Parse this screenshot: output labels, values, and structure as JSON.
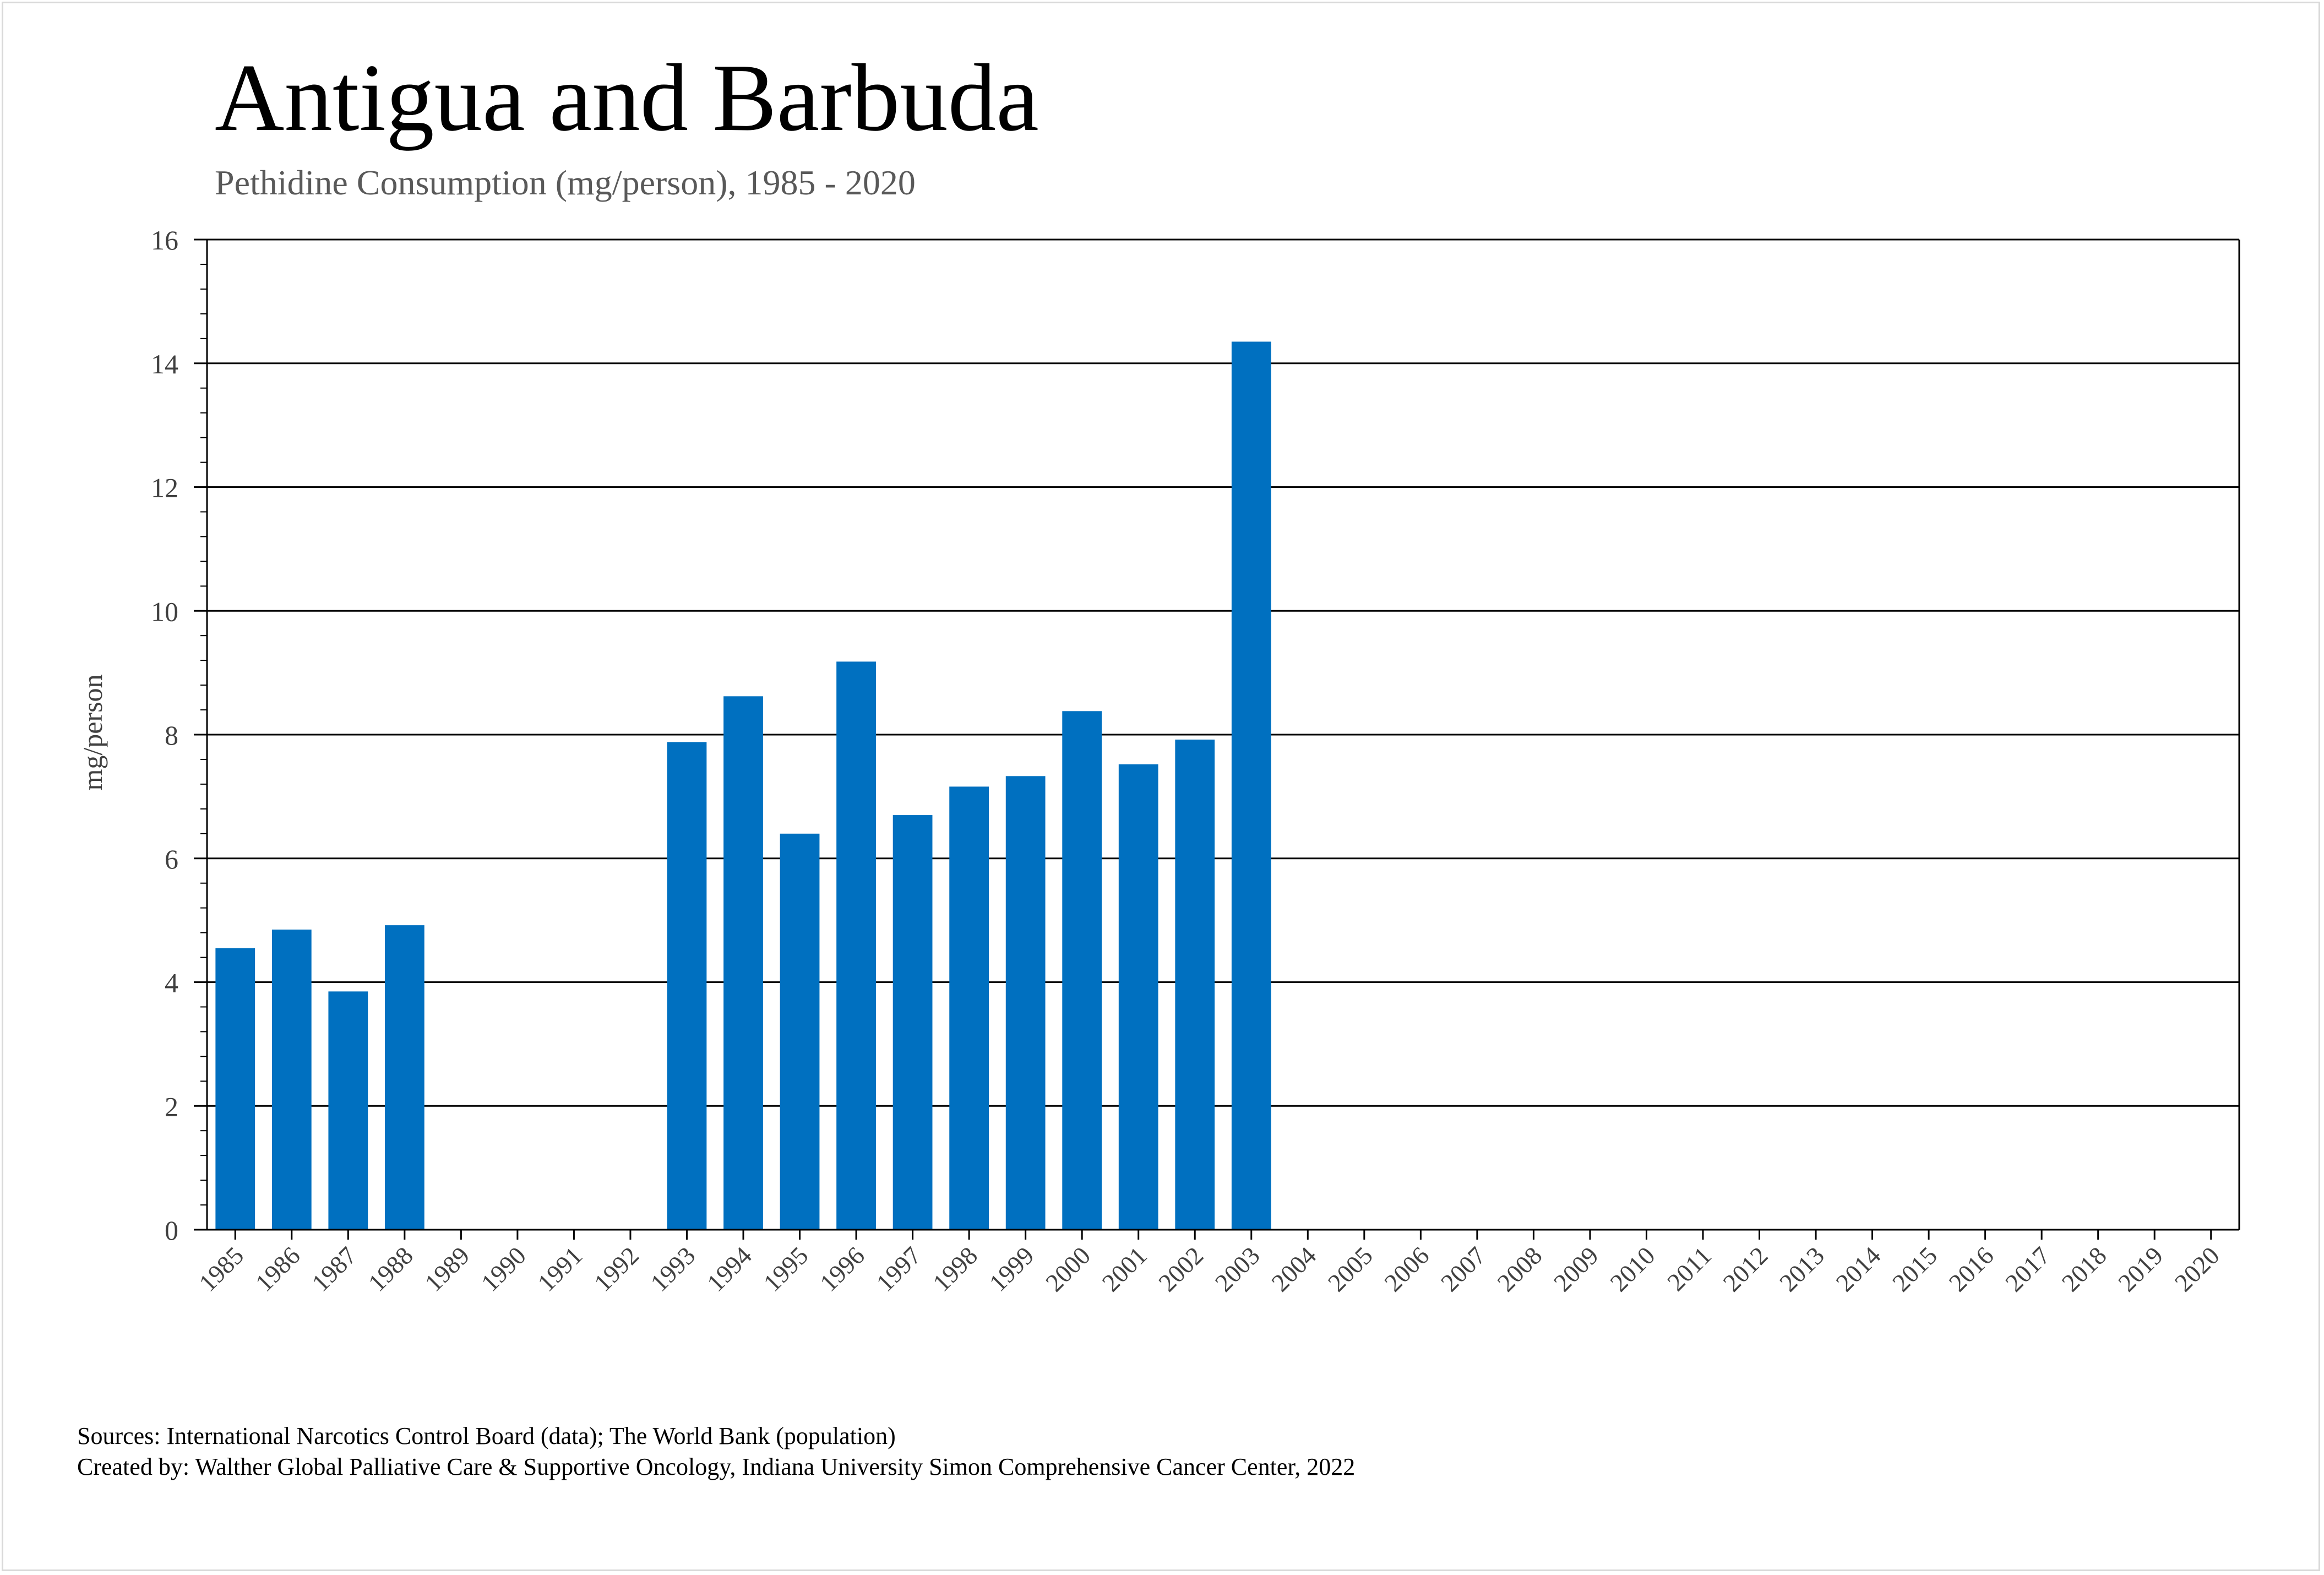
{
  "chart_data": {
    "type": "bar",
    "title": "Antigua and Barbuda",
    "subtitle": "Pethidine Consumption (mg/person), 1985 - 2020",
    "xlabel": "",
    "ylabel": "mg/person",
    "ylim": [
      0,
      16
    ],
    "yticks": [
      0,
      2,
      4,
      6,
      8,
      10,
      12,
      14,
      16
    ],
    "grid": true,
    "bar_color": "#0070C0",
    "categories": [
      "1985",
      "1986",
      "1987",
      "1988",
      "1989",
      "1990",
      "1991",
      "1992",
      "1993",
      "1994",
      "1995",
      "1996",
      "1997",
      "1998",
      "1999",
      "2000",
      "2001",
      "2002",
      "2003",
      "2004",
      "2005",
      "2006",
      "2007",
      "2008",
      "2009",
      "2010",
      "2011",
      "2012",
      "2013",
      "2014",
      "2015",
      "2016",
      "2017",
      "2018",
      "2019",
      "2020"
    ],
    "values": [
      4.55,
      4.85,
      3.85,
      4.92,
      null,
      null,
      null,
      null,
      7.88,
      8.62,
      6.4,
      9.18,
      6.7,
      7.16,
      7.33,
      8.38,
      7.52,
      7.92,
      14.35,
      null,
      null,
      null,
      null,
      null,
      null,
      null,
      null,
      null,
      null,
      null,
      null,
      null,
      null,
      null,
      null,
      null
    ]
  },
  "footer": {
    "sources": "Sources: International Narcotics Control Board (data); The World Bank (population)",
    "created_by": "Created by: Walther Global Palliative Care & Supportive Oncology, Indiana University Simon Comprehensive Cancer Center, 2022"
  }
}
